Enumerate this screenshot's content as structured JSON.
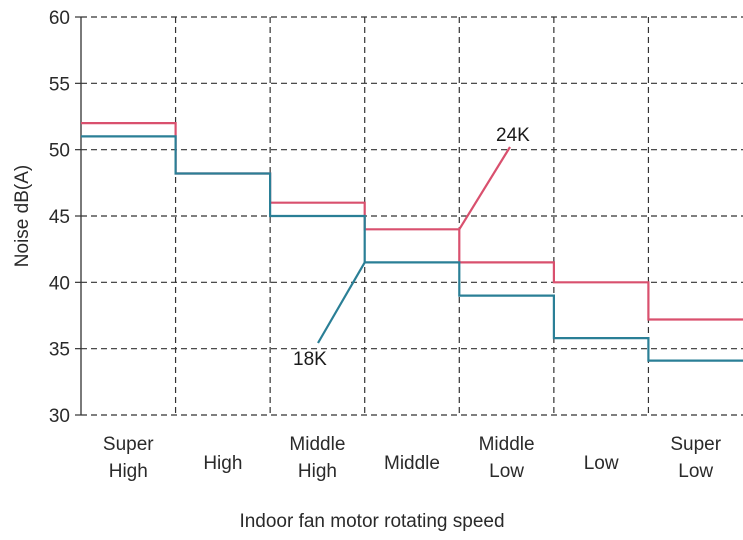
{
  "chart_data": {
    "type": "line",
    "xlabel": "Indoor fan motor rotating speed",
    "ylabel": "Noise dB(A)",
    "ylim": [
      30,
      60
    ],
    "yticks": [
      "30",
      "35",
      "40",
      "45",
      "50",
      "55",
      "60"
    ],
    "grid": true,
    "categories": [
      [
        "Super",
        "High"
      ],
      [
        "High"
      ],
      [
        "Middle",
        "High"
      ],
      [
        "Middle"
      ],
      [
        "Middle",
        "Low"
      ],
      [
        "Low"
      ],
      [
        "Super",
        "Low"
      ]
    ],
    "series": [
      {
        "name": "24K",
        "color": "#d9506e",
        "values": [
          52.0,
          48.2,
          46.0,
          44.0,
          41.5,
          40.0,
          37.2
        ]
      },
      {
        "name": "18K",
        "color": "#2a7f96",
        "values": [
          51.0,
          48.2,
          45.0,
          41.5,
          39.0,
          35.8,
          34.1
        ]
      }
    ],
    "annotations": [
      {
        "text": "24K",
        "series": "24K"
      },
      {
        "text": "18K",
        "series": "18K"
      }
    ]
  }
}
